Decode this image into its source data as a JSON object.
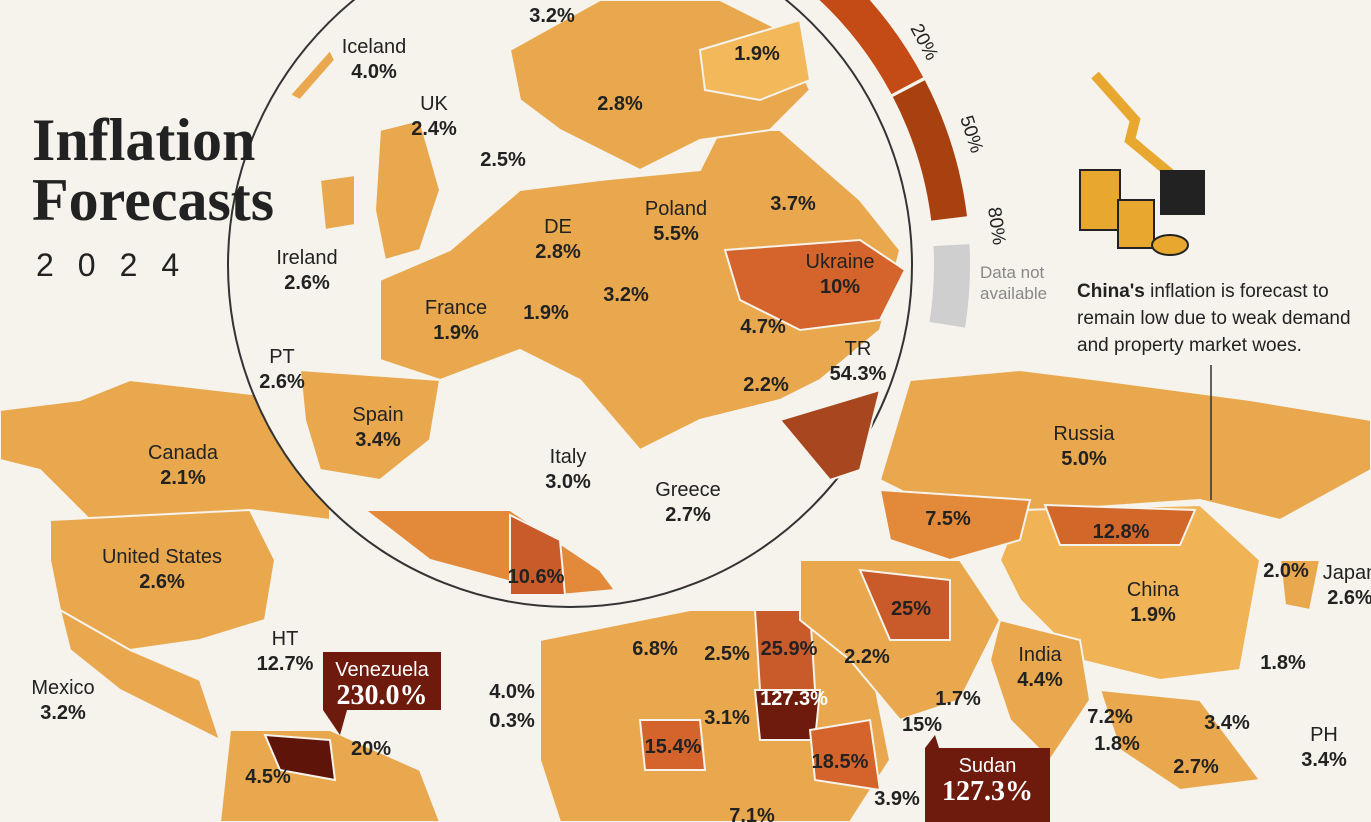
{
  "header": {
    "title_lines": [
      "Inflation",
      "Forecasts"
    ],
    "subtitle": "2024"
  },
  "legend": {
    "ticks": [
      "20%",
      "50%",
      "80%"
    ],
    "not_available": [
      "Data not",
      "available"
    ]
  },
  "note": {
    "bold": "China's",
    "text": " inflation is forecast to remain low due to weak demand and property market woes."
  },
  "labels": [
    {
      "value": "3.2%"
    },
    {
      "value": "1.9%"
    },
    {
      "value": "2.8%"
    },
    {
      "name": "Iceland",
      "value": "4.0%"
    },
    {
      "name": "UK",
      "value": "2.4%"
    },
    {
      "value": "2.5%"
    },
    {
      "name": "Ireland",
      "value": "2.6%"
    },
    {
      "name": "DE",
      "value": "2.8%"
    },
    {
      "name": "Poland",
      "value": "5.5%"
    },
    {
      "value": "3.7%"
    },
    {
      "name": "Ukraine",
      "value": "10%"
    },
    {
      "name": "France",
      "value": "1.9%"
    },
    {
      "value": "1.9%"
    },
    {
      "value": "3.2%"
    },
    {
      "value": "4.7%"
    },
    {
      "name": "PT",
      "value": "2.6%"
    },
    {
      "name": "Spain",
      "value": "3.4%"
    },
    {
      "name": "TR",
      "value": "54.3%"
    },
    {
      "value": "2.2%"
    },
    {
      "name": "Italy",
      "value": "3.0%"
    },
    {
      "name": "Greece",
      "value": "2.7%"
    },
    {
      "value": "10.6%"
    },
    {
      "name": "Russia",
      "value": "5.0%"
    },
    {
      "name": "Canada",
      "value": "2.1%"
    },
    {
      "name": "United States",
      "value": "2.6%"
    },
    {
      "value": "7.5%"
    },
    {
      "value": "12.8%"
    },
    {
      "name": "China",
      "value": "1.9%"
    },
    {
      "value": "2.0%"
    },
    {
      "name": "Japan",
      "value": "2.6%"
    },
    {
      "name": "HT",
      "value": "12.7%"
    },
    {
      "name": "Mexico",
      "value": "3.2%"
    },
    {
      "value": "25%"
    },
    {
      "name": "India",
      "value": "4.4%"
    },
    {
      "value": "1.8%"
    },
    {
      "value": "6.8%"
    },
    {
      "value": "2.5%"
    },
    {
      "value": "25.9%"
    },
    {
      "value": "2.2%"
    },
    {
      "value": "4.0%"
    },
    {
      "value": "0.3%"
    },
    {
      "value": "127.3%"
    },
    {
      "value": "1.7%"
    },
    {
      "value": "15%"
    },
    {
      "value": "3.1%"
    },
    {
      "value": "15.4%"
    },
    {
      "value": "18.5%"
    },
    {
      "value": "7.2%"
    },
    {
      "value": "1.8%"
    },
    {
      "value": "3.4%"
    },
    {
      "name": "PH",
      "value": "3.4%"
    },
    {
      "value": "2.7%"
    },
    {
      "value": "20%"
    },
    {
      "value": "4.5%"
    },
    {
      "value": "3.9%"
    },
    {
      "value": "7.1%"
    }
  ],
  "callouts": [
    {
      "name": "Venezuela",
      "value": "230.0%"
    },
    {
      "name": "Sudan",
      "value": "127.3%"
    }
  ]
}
